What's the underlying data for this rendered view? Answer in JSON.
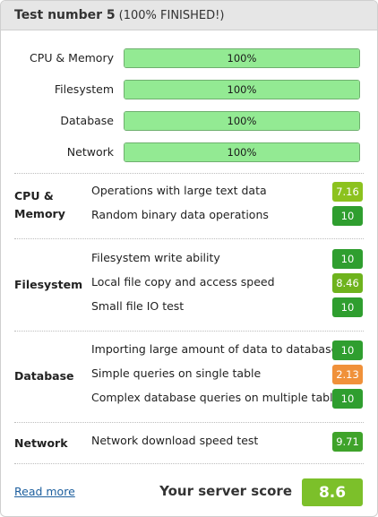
{
  "header": {
    "title": "Test number 5",
    "status": "(100% FINISHED!)"
  },
  "progress": [
    {
      "label": "CPU & Memory",
      "value": "100%",
      "fraction": 1.0
    },
    {
      "label": "Filesystem",
      "value": "100%",
      "fraction": 1.0
    },
    {
      "label": "Database",
      "value": "100%",
      "fraction": 1.0
    },
    {
      "label": "Network",
      "value": "100%",
      "fraction": 1.0
    }
  ],
  "groups": [
    {
      "name_line1": "CPU &",
      "name_line2": "Memory",
      "tests": [
        {
          "label": "Operations with large text data",
          "score": "7.16",
          "color": "#8cc21e"
        },
        {
          "label": "Random binary data operations",
          "score": "10",
          "color": "#2f9e2f"
        }
      ]
    },
    {
      "name_line1": "Filesystem",
      "tests": [
        {
          "label": "Filesystem write ability",
          "score": "10",
          "color": "#2f9e2f"
        },
        {
          "label": "Local file copy and access speed",
          "score": "8.46",
          "color": "#6eb31d"
        },
        {
          "label": "Small file IO test",
          "score": "10",
          "color": "#2f9e2f"
        }
      ]
    },
    {
      "name_line1": "Database",
      "tests": [
        {
          "label": "Importing large amount of data to database",
          "score": "10",
          "color": "#2f9e2f"
        },
        {
          "label": "Simple queries on single table",
          "score": "2.13",
          "color": "#f0913a"
        },
        {
          "label": "Complex database queries on multiple tables",
          "score": "10",
          "color": "#2f9e2f"
        }
      ]
    },
    {
      "name_line1": "Network",
      "tests": [
        {
          "label": "Network download speed test",
          "score": "9.71",
          "color": "#3fa32a"
        }
      ]
    }
  ],
  "footer": {
    "read_more": "Read more",
    "score_title": "Your server score",
    "score": "8.6",
    "score_color": "#7cc02a"
  }
}
